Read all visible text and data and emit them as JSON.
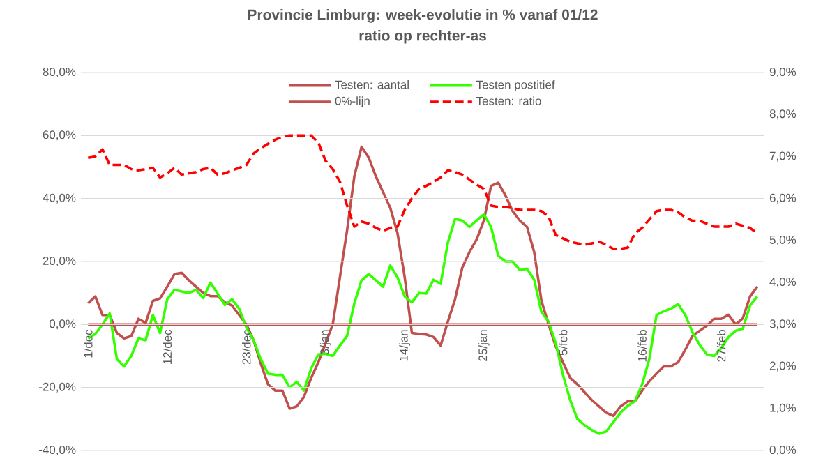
{
  "chart_data": {
    "type": "line",
    "title": "Provincie Limburg: week-evolutie in %  vanaf 01/12",
    "subtitle": "ratio op rechter-as",
    "categories": [
      "1/dec",
      null,
      null,
      null,
      null,
      null,
      null,
      null,
      null,
      null,
      null,
      "12/dec",
      null,
      null,
      null,
      null,
      null,
      null,
      null,
      null,
      null,
      null,
      "23/dec",
      null,
      null,
      null,
      null,
      null,
      null,
      null,
      null,
      null,
      null,
      "3/jan",
      null,
      null,
      null,
      null,
      null,
      null,
      null,
      null,
      null,
      null,
      "14/jan",
      null,
      null,
      null,
      null,
      null,
      null,
      null,
      null,
      null,
      null,
      "25/jan",
      null,
      null,
      null,
      null,
      null,
      null,
      null,
      null,
      null,
      null,
      "5/feb",
      null,
      null,
      null,
      null,
      null,
      null,
      null,
      null,
      null,
      null,
      "16/feb",
      null,
      null,
      null,
      null,
      null,
      null,
      null,
      null,
      null,
      null,
      "27/feb",
      null,
      null,
      null,
      null,
      null
    ],
    "ylim": [
      -40,
      80
    ],
    "yticks": [
      {
        "value": -40,
        "label": "-40,0%"
      },
      {
        "value": -20,
        "label": "-20,0%"
      },
      {
        "value": 0,
        "label": "0,0%"
      },
      {
        "value": 20,
        "label": "20,0%"
      },
      {
        "value": 40,
        "label": "40,0%"
      },
      {
        "value": 60,
        "label": "60,0%"
      },
      {
        "value": 80,
        "label": "80,0%"
      }
    ],
    "y2lim": [
      0,
      9
    ],
    "y2ticks": [
      {
        "value": 0,
        "label": "0,0%"
      },
      {
        "value": 1,
        "label": "1,0%"
      },
      {
        "value": 2,
        "label": "2,0%"
      },
      {
        "value": 3,
        "label": "3,0%"
      },
      {
        "value": 4,
        "label": "4,0%"
      },
      {
        "value": 5,
        "label": "5,0%"
      },
      {
        "value": 6,
        "label": "6,0%"
      },
      {
        "value": 7,
        "label": "7,0%"
      },
      {
        "value": 8,
        "label": "8,0%"
      },
      {
        "value": 9,
        "label": "9,0%"
      }
    ],
    "grid": "y",
    "legend": "top",
    "marker": "none",
    "series": [
      {
        "name": "Testen: aantal",
        "color": "#c0504d",
        "line_style": "solid",
        "values": [
          6.7,
          8.9,
          3,
          3,
          -2.7,
          -4.4,
          -3.7,
          1.8,
          0.5,
          7.5,
          8.3,
          12,
          16,
          16.4,
          14,
          12,
          10,
          9,
          9,
          7,
          6,
          3,
          0,
          -5,
          -12.4,
          -19,
          -21,
          -21,
          -26.7,
          -26,
          -23,
          -17,
          -12,
          -6,
          0,
          15,
          30,
          47,
          56.4,
          53,
          47,
          42,
          37,
          29,
          15,
          -2.7,
          -3,
          -3.2,
          -4,
          -6.7,
          0.9,
          8,
          18,
          23,
          27,
          33,
          44,
          45,
          41,
          36,
          33,
          31,
          23,
          7.6,
          0,
          -7,
          -12,
          -17,
          -19,
          -21.5,
          -24,
          -26,
          -28,
          -29,
          -26,
          -24.4,
          -24.4,
          -21,
          -18,
          -15.6,
          -13.3,
          -13.3,
          -12,
          -8,
          -3.6,
          -2,
          -0.4,
          1.8,
          1.8,
          3.1,
          0,
          2,
          8.9,
          12
        ]
      },
      {
        "name": "Testen postitief",
        "color": "#33ff00",
        "line_style": "solid",
        "values": [
          -4.4,
          -3,
          0,
          3.5,
          -11,
          -13.3,
          -10,
          -4.4,
          -5,
          3,
          -2.7,
          8,
          11,
          10.5,
          10,
          11,
          8.4,
          13.3,
          9.8,
          6.2,
          8,
          5,
          -1,
          -5,
          -11,
          -15.6,
          -16,
          -16,
          -20,
          -18.2,
          -21,
          -14,
          -9.5,
          -9.3,
          -10,
          -6.7,
          -3.6,
          6.7,
          14,
          16,
          14,
          12,
          18.7,
          15,
          8.9,
          7,
          10,
          9.8,
          14.2,
          12.9,
          26,
          33.5,
          33,
          31,
          33,
          35,
          31,
          21.8,
          20,
          20,
          17.3,
          17.7,
          14.2,
          4,
          0.9,
          -6,
          -16,
          -24,
          -30,
          -32,
          -33.5,
          -34.7,
          -34,
          -31,
          -28,
          -25.8,
          -24.4,
          -19,
          -11,
          3,
          4.2,
          5,
          6.5,
          3,
          -2.5,
          -6.5,
          -9.5,
          -10,
          -7.5,
          -4,
          -2,
          -1.3,
          6,
          8.9
        ]
      },
      {
        "name": "0%-lijn",
        "color": "#c0504d",
        "line_style": "solid",
        "values": [
          0,
          0,
          0,
          0,
          0,
          0,
          0,
          0,
          0,
          0,
          0,
          0,
          0,
          0,
          0,
          0,
          0,
          0,
          0,
          0,
          0,
          0,
          0,
          0,
          0,
          0,
          0,
          0,
          0,
          0,
          0,
          0,
          0,
          0,
          0,
          0,
          0,
          0,
          0,
          0,
          0,
          0,
          0,
          0,
          0,
          0,
          0,
          0,
          0,
          0,
          0,
          0,
          0,
          0,
          0,
          0,
          0,
          0,
          0,
          0,
          0,
          0,
          0,
          0,
          0,
          0,
          0,
          0,
          0,
          0,
          0,
          0,
          0,
          0,
          0,
          0,
          0,
          0,
          0,
          0,
          0,
          0,
          0,
          0,
          0,
          0,
          0,
          0,
          0,
          0,
          0,
          0,
          0,
          0
        ]
      },
      {
        "name": "Testen: ratio",
        "color": "#ff0000",
        "line_style": "dashed",
        "axis": "y2",
        "values": [
          6.97,
          7.0,
          7.17,
          6.8,
          6.8,
          6.8,
          6.7,
          6.67,
          6.7,
          6.73,
          6.5,
          6.6,
          6.73,
          6.57,
          6.6,
          6.63,
          6.7,
          6.73,
          6.57,
          6.6,
          6.67,
          6.73,
          6.8,
          7.07,
          7.2,
          7.3,
          7.4,
          7.47,
          7.5,
          7.5,
          7.5,
          7.5,
          7.33,
          6.9,
          6.7,
          6.4,
          5.83,
          5.33,
          5.45,
          5.4,
          5.3,
          5.23,
          5.3,
          5.33,
          5.73,
          6.0,
          6.23,
          6.3,
          6.4,
          6.5,
          6.67,
          6.63,
          6.57,
          6.45,
          6.33,
          6.23,
          5.83,
          5.8,
          5.8,
          5.77,
          5.73,
          5.73,
          5.73,
          5.7,
          5.57,
          5.13,
          5.05,
          4.97,
          4.93,
          4.9,
          4.93,
          4.97,
          4.9,
          4.8,
          4.8,
          4.83,
          5.17,
          5.3,
          5.5,
          5.7,
          5.73,
          5.73,
          5.67,
          5.55,
          5.47,
          5.47,
          5.4,
          5.33,
          5.33,
          5.33,
          5.4,
          5.35,
          5.3,
          5.17
        ]
      }
    ]
  }
}
